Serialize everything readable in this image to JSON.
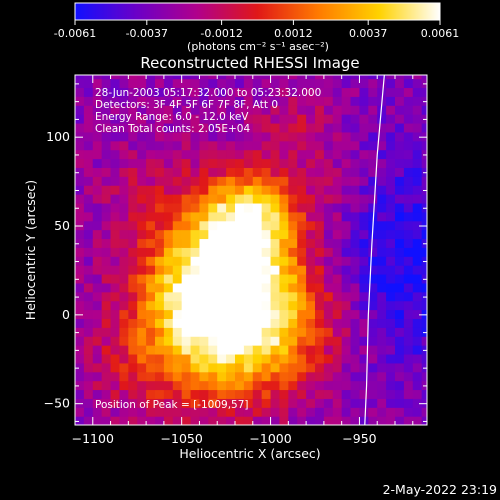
{
  "colorbar": {
    "ticks": [
      "-0.0061",
      "-0.0037",
      "-0.0012",
      "0.0012",
      "0.0037",
      "0.0061"
    ],
    "unit_label": "(photons cm⁻² s⁻¹ asec⁻²)",
    "range": [
      -0.0061,
      0.0061
    ],
    "stops": [
      "#1010ff",
      "#6a00c8",
      "#b0008c",
      "#e01818",
      "#ff7a00",
      "#ffd200",
      "#ffffff"
    ]
  },
  "chart_data": {
    "type": "heatmap",
    "title": "Reconstructed RHESSI Image",
    "xlabel": "Heliocentric X (arcsec)",
    "ylabel": "Heliocentric Y (arcsec)",
    "xlim": [
      -1110,
      -912
    ],
    "ylim": [
      -62,
      135
    ],
    "x_ticks": [
      -1100,
      -1050,
      -1000,
      -950
    ],
    "y_ticks": [
      -50,
      0,
      50,
      100
    ],
    "annotations": [
      "28-Jun-2003 05:17:32.000 to 05:23:32.000",
      "Detectors: 3F 4F 5F 6F 7F 8F, Att 0",
      "Energy Range: 6.0 - 12.0 keV",
      "Clean     Total counts: 2.05E+04"
    ],
    "peak_label": "Position of Peak = [-1009,57]",
    "peak": [
      -1009,
      57
    ],
    "limb_curve": [
      [
        -936,
        135
      ],
      [
        -940,
        90
      ],
      [
        -943,
        40
      ],
      [
        -945,
        0
      ],
      [
        -946,
        -40
      ],
      [
        -947,
        -62
      ]
    ],
    "sources": [
      {
        "x": -1010,
        "y": 57,
        "sigma": 18,
        "amp": 0.0061
      },
      {
        "x": -1030,
        "y": 30,
        "sigma": 28,
        "amp": 0.0046
      },
      {
        "x": -1040,
        "y": 2,
        "sigma": 32,
        "amp": 0.0043
      },
      {
        "x": -1020,
        "y": -15,
        "sigma": 26,
        "amp": 0.0036
      },
      {
        "x": -1005,
        "y": 12,
        "sigma": 30,
        "amp": 0.003
      },
      {
        "x": -980,
        "y": -5,
        "sigma": 25,
        "amp": 0.0022
      },
      {
        "x": -965,
        "y": 70,
        "sigma": 18,
        "amp": 0.0016
      },
      {
        "x": -1075,
        "y": -28,
        "sigma": 22,
        "amp": 0.0014
      },
      {
        "x": -1070,
        "y": 75,
        "sigma": 20,
        "amp": 0.001
      },
      {
        "x": -985,
        "y": 108,
        "sigma": 16,
        "amp": 0.0018
      },
      {
        "x": -1090,
        "y": 20,
        "sigma": 18,
        "amp": -0.0004
      },
      {
        "x": -925,
        "y": 30,
        "sigma": 45,
        "amp": -0.003
      }
    ]
  },
  "timestamp": "2-May-2022 23:19"
}
